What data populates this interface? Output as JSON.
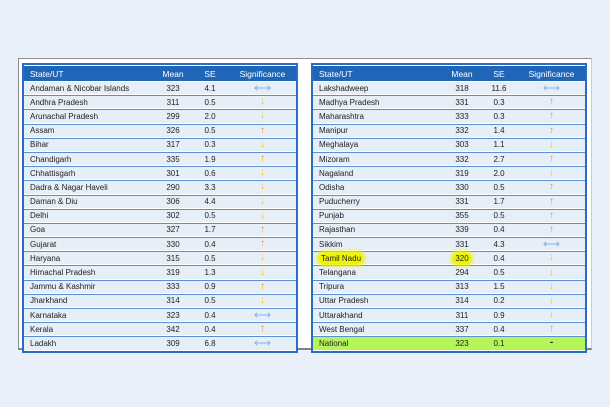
{
  "headers": {
    "state": "State/UT",
    "mean": "Mean",
    "se": "SE",
    "significance": "Significance"
  },
  "colors": {
    "higher": "#f5951f",
    "lower": "#f9c20f",
    "not_significant": "#7fb4ea",
    "header": "#1f66b8",
    "national_row": "#b4f55a",
    "highlight": "#eef500"
  },
  "left_rows": [
    {
      "state": "Andaman & Nicobar Islands",
      "mean": "323",
      "se": "4.1",
      "sig": "ns"
    },
    {
      "state": "Andhra Pradesh",
      "mean": "311",
      "se": "0.5",
      "sig": "down"
    },
    {
      "state": "Arunachal Pradesh",
      "mean": "299",
      "se": "2.0",
      "sig": "down"
    },
    {
      "state": "Assam",
      "mean": "326",
      "se": "0.5",
      "sig": "up"
    },
    {
      "state": "Bihar",
      "mean": "317",
      "se": "0.3",
      "sig": "down"
    },
    {
      "state": "Chandigarh",
      "mean": "335",
      "se": "1.9",
      "sig": "up"
    },
    {
      "state": "Chhattisgarh",
      "mean": "301",
      "se": "0.6",
      "sig": "down"
    },
    {
      "state": "Dadra & Nagar Haveli",
      "mean": "290",
      "se": "3.3",
      "sig": "down"
    },
    {
      "state": "Daman & Diu",
      "mean": "306",
      "se": "4.4",
      "sig": "down"
    },
    {
      "state": "Delhi",
      "mean": "302",
      "se": "0.5",
      "sig": "down"
    },
    {
      "state": "Goa",
      "mean": "327",
      "se": "1.7",
      "sig": "up"
    },
    {
      "state": "Gujarat",
      "mean": "330",
      "se": "0.4",
      "sig": "up"
    },
    {
      "state": "Haryana",
      "mean": "315",
      "se": "0.5",
      "sig": "down"
    },
    {
      "state": "Himachal Pradesh",
      "mean": "319",
      "se": "1.3",
      "sig": "down"
    },
    {
      "state": "Jammu & Kashmir",
      "mean": "333",
      "se": "0.9",
      "sig": "up"
    },
    {
      "state": "Jharkhand",
      "mean": "314",
      "se": "0.5",
      "sig": "down"
    },
    {
      "state": "Karnataka",
      "mean": "323",
      "se": "0.4",
      "sig": "ns"
    },
    {
      "state": "Kerala",
      "mean": "342",
      "se": "0.4",
      "sig": "up"
    },
    {
      "state": "Ladakh",
      "mean": "309",
      "se": "6.8",
      "sig": "ns"
    }
  ],
  "right_rows": [
    {
      "state": "Lakshadweep",
      "mean": "318",
      "se": "11.6",
      "sig": "ns"
    },
    {
      "state": "Madhya Pradesh",
      "mean": "331",
      "se": "0.3",
      "sig": "up"
    },
    {
      "state": "Maharashtra",
      "mean": "333",
      "se": "0.3",
      "sig": "up"
    },
    {
      "state": "Manipur",
      "mean": "332",
      "se": "1.4",
      "sig": "up"
    },
    {
      "state": "Meghalaya",
      "mean": "303",
      "se": "1.1",
      "sig": "down"
    },
    {
      "state": "Mizoram",
      "mean": "332",
      "se": "2.7",
      "sig": "up"
    },
    {
      "state": "Nagaland",
      "mean": "319",
      "se": "2.0",
      "sig": "down"
    },
    {
      "state": "Odisha",
      "mean": "330",
      "se": "0.5",
      "sig": "up"
    },
    {
      "state": "Puducherry",
      "mean": "331",
      "se": "1.7",
      "sig": "up"
    },
    {
      "state": "Punjab",
      "mean": "355",
      "se": "0.5",
      "sig": "up"
    },
    {
      "state": "Rajasthan",
      "mean": "339",
      "se": "0.4",
      "sig": "up"
    },
    {
      "state": "Sikkim",
      "mean": "331",
      "se": "4.3",
      "sig": "ns"
    },
    {
      "state": "Tamil Nadu",
      "mean": "320",
      "se": "0.4",
      "sig": "down",
      "highlighted": true
    },
    {
      "state": "Telangana",
      "mean": "294",
      "se": "0.5",
      "sig": "down"
    },
    {
      "state": "Tripura",
      "mean": "313",
      "se": "1.5",
      "sig": "down"
    },
    {
      "state": "Uttar Pradesh",
      "mean": "314",
      "se": "0.2",
      "sig": "down"
    },
    {
      "state": "Uttarakhand",
      "mean": "311",
      "se": "0.9",
      "sig": "down"
    },
    {
      "state": "West Bengal",
      "mean": "337",
      "se": "0.4",
      "sig": "up"
    },
    {
      "state": "National",
      "mean": "323",
      "se": "0.1",
      "sig": "dot",
      "national": true,
      "sig_text": "-"
    }
  ]
}
